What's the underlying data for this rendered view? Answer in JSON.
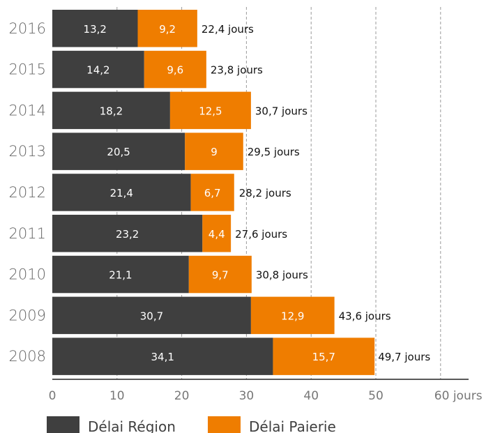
{
  "chart_data": {
    "type": "bar",
    "orientation": "horizontal",
    "stacked": true,
    "categories": [
      "2016",
      "2015",
      "2014",
      "2013",
      "2012",
      "2011",
      "2010",
      "2009",
      "2008"
    ],
    "series": [
      {
        "name": "Délai Région",
        "color": "#3f3f3f",
        "values": [
          13.2,
          14.2,
          18.2,
          20.5,
          21.4,
          23.2,
          21.1,
          30.7,
          34.1
        ],
        "labels": [
          "13,2",
          "14,2",
          "18,2",
          "20,5",
          "21,4",
          "23,2",
          "21,1",
          "30,7",
          "34,1"
        ]
      },
      {
        "name": "Délai Paierie",
        "color": "#ef7d00",
        "values": [
          9.2,
          9.6,
          12.5,
          9,
          6.7,
          4.4,
          9.7,
          12.9,
          15.7
        ],
        "labels": [
          "9,2",
          "9,6",
          "12,5",
          "9",
          "6,7",
          "4,4",
          "9,7",
          "12,9",
          "15,7"
        ]
      }
    ],
    "totals": [
      22.4,
      23.8,
      30.7,
      29.5,
      28.2,
      27.6,
      30.8,
      43.6,
      49.7
    ],
    "total_labels": [
      "22,4 jours",
      "23,8 jours",
      "30,7 jours",
      "29,5 jours",
      "28,2 jours",
      "27,6 jours",
      "30,8 jours",
      "43,6 jours",
      "49,7 jours"
    ],
    "x_ticks": [
      0,
      10,
      20,
      30,
      40,
      50,
      60
    ],
    "x_tick_labels": [
      "0",
      "10",
      "20",
      "30",
      "40",
      "50",
      "60 jours"
    ],
    "xlim": [
      0,
      60
    ],
    "grid": "vertical dashed",
    "legend_position": "bottom-left"
  }
}
